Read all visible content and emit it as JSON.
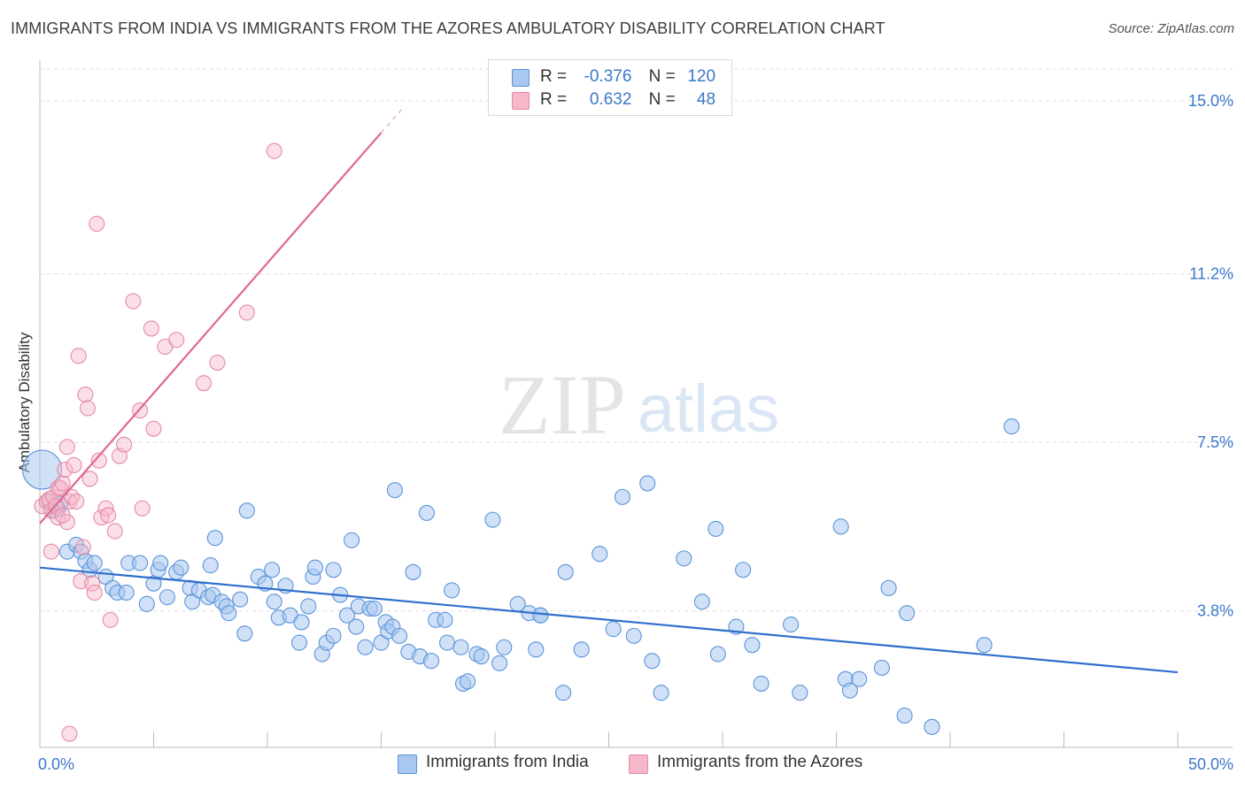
{
  "title": "IMMIGRANTS FROM INDIA VS IMMIGRANTS FROM THE AZORES AMBULATORY DISABILITY CORRELATION CHART",
  "source": "Source: ZipAtlas.com",
  "watermark": {
    "zip": "ZIP",
    "atlas": "atlas"
  },
  "legend": {
    "r_label": "R =",
    "n_label": "N =",
    "entries": [
      {
        "r": "-0.376",
        "n": "120"
      },
      {
        "r": "0.632",
        "n": "48"
      }
    ]
  },
  "colors": {
    "india_fill": "#a9c8f0",
    "india_stroke": "#5b93d8",
    "india_line": "#2f6fcc",
    "azores_fill": "#f6b8c9",
    "azores_stroke": "#e58aa6",
    "azores_line": "#e06890",
    "axis_label": "#3a78c9",
    "grid": "#dcdcdc"
  },
  "chart_data": {
    "type": "scatter",
    "title": "IMMIGRANTS FROM INDIA VS IMMIGRANTS FROM THE AZORES AMBULATORY DISABILITY CORRELATION CHART",
    "xlabel": "",
    "ylabel": "Ambulatory Disability",
    "xlim": [
      0,
      50
    ],
    "ylim": [
      0.8,
      15.7
    ],
    "x_tick_labels": [
      "0.0%",
      "50.0%"
    ],
    "y_ticks": [
      3.8,
      7.5,
      11.2,
      15.0
    ],
    "y_tick_labels": [
      "3.8%",
      "7.5%",
      "11.2%",
      "15.0%"
    ],
    "grid": "horizontal dashed",
    "legend_position": "top-center",
    "series": [
      {
        "name": "Immigrants from India",
        "r": -0.376,
        "n": 120,
        "trend": {
          "x0": 0,
          "y0": 4.75,
          "x1": 50,
          "y1": 2.45
        },
        "points": [
          [
            0.1,
            6.9
          ],
          [
            0.4,
            6.2
          ],
          [
            0.6,
            6.0
          ],
          [
            0.8,
            6.05
          ],
          [
            1.2,
            5.1
          ],
          [
            1.6,
            5.25
          ],
          [
            1.8,
            5.1
          ],
          [
            2.0,
            4.9
          ],
          [
            2.2,
            4.7
          ],
          [
            2.4,
            4.85
          ],
          [
            2.9,
            4.55
          ],
          [
            3.2,
            4.3
          ],
          [
            3.4,
            4.2
          ],
          [
            3.8,
            4.2
          ],
          [
            3.9,
            4.85
          ],
          [
            4.4,
            4.85
          ],
          [
            4.7,
            3.95
          ],
          [
            5.0,
            4.4
          ],
          [
            5.2,
            4.7
          ],
          [
            5.3,
            4.85
          ],
          [
            5.6,
            4.1
          ],
          [
            6.0,
            4.65
          ],
          [
            6.2,
            4.75
          ],
          [
            6.6,
            4.3
          ],
          [
            6.7,
            4.0
          ],
          [
            7.0,
            4.25
          ],
          [
            7.4,
            4.1
          ],
          [
            7.5,
            4.8
          ],
          [
            7.6,
            4.15
          ],
          [
            7.7,
            5.4
          ],
          [
            8.0,
            4.0
          ],
          [
            8.2,
            3.9
          ],
          [
            8.3,
            3.75
          ],
          [
            8.8,
            4.05
          ],
          [
            9.0,
            3.3
          ],
          [
            9.1,
            6.0
          ],
          [
            9.6,
            4.55
          ],
          [
            9.9,
            4.4
          ],
          [
            10.2,
            4.7
          ],
          [
            10.3,
            4.0
          ],
          [
            10.5,
            3.65
          ],
          [
            10.8,
            4.35
          ],
          [
            11.0,
            3.7
          ],
          [
            11.4,
            3.1
          ],
          [
            11.5,
            3.55
          ],
          [
            11.8,
            3.9
          ],
          [
            12.0,
            4.55
          ],
          [
            12.1,
            4.75
          ],
          [
            12.4,
            2.85
          ],
          [
            12.6,
            3.1
          ],
          [
            12.9,
            3.25
          ],
          [
            12.9,
            4.7
          ],
          [
            13.2,
            4.15
          ],
          [
            13.5,
            3.7
          ],
          [
            13.7,
            5.35
          ],
          [
            13.9,
            3.45
          ],
          [
            14.0,
            3.9
          ],
          [
            14.3,
            3.0
          ],
          [
            14.5,
            3.85
          ],
          [
            14.7,
            3.85
          ],
          [
            15.0,
            3.1
          ],
          [
            15.2,
            3.55
          ],
          [
            15.3,
            3.35
          ],
          [
            15.5,
            3.45
          ],
          [
            15.6,
            6.45
          ],
          [
            15.8,
            3.25
          ],
          [
            16.2,
            2.9
          ],
          [
            16.4,
            4.65
          ],
          [
            16.7,
            2.8
          ],
          [
            17.0,
            5.95
          ],
          [
            17.2,
            2.7
          ],
          [
            17.4,
            3.6
          ],
          [
            17.8,
            3.6
          ],
          [
            17.9,
            3.1
          ],
          [
            18.1,
            4.25
          ],
          [
            18.5,
            3.0
          ],
          [
            18.6,
            2.2
          ],
          [
            18.8,
            2.25
          ],
          [
            19.2,
            2.85
          ],
          [
            19.4,
            2.8
          ],
          [
            19.9,
            5.8
          ],
          [
            20.2,
            2.65
          ],
          [
            20.4,
            3.0
          ],
          [
            21.0,
            3.95
          ],
          [
            21.5,
            3.75
          ],
          [
            21.8,
            2.95
          ],
          [
            22.0,
            3.7
          ],
          [
            22.0,
            3.7
          ],
          [
            23.0,
            2.0
          ],
          [
            23.1,
            4.65
          ],
          [
            23.8,
            2.95
          ],
          [
            24.6,
            5.05
          ],
          [
            25.2,
            3.4
          ],
          [
            25.6,
            6.3
          ],
          [
            26.1,
            3.25
          ],
          [
            26.7,
            6.6
          ],
          [
            26.9,
            2.7
          ],
          [
            27.3,
            2.0
          ],
          [
            28.3,
            4.95
          ],
          [
            29.1,
            4.0
          ],
          [
            29.7,
            5.6
          ],
          [
            29.8,
            2.85
          ],
          [
            30.6,
            3.45
          ],
          [
            30.9,
            4.7
          ],
          [
            31.3,
            3.05
          ],
          [
            31.7,
            2.2
          ],
          [
            33.0,
            3.5
          ],
          [
            33.4,
            2.0
          ],
          [
            35.2,
            5.65
          ],
          [
            35.4,
            2.3
          ],
          [
            35.6,
            2.05
          ],
          [
            36.0,
            2.3
          ],
          [
            37.0,
            2.55
          ],
          [
            37.3,
            4.3
          ],
          [
            38.0,
            1.5
          ],
          [
            38.1,
            3.75
          ],
          [
            39.2,
            1.25
          ],
          [
            41.5,
            3.05
          ],
          [
            42.7,
            7.85
          ],
          [
            0.9,
            6.15
          ]
        ]
      },
      {
        "name": "Immigrants from the Azores",
        "r": 0.632,
        "n": 48,
        "trend": {
          "x0": 0,
          "y0": 5.72,
          "x1": 15,
          "y1": 14.3
        },
        "points": [
          [
            0.1,
            6.1
          ],
          [
            0.3,
            6.2
          ],
          [
            0.4,
            6.25
          ],
          [
            0.5,
            6.0
          ],
          [
            0.6,
            6.3
          ],
          [
            0.7,
            6.1
          ],
          [
            0.8,
            6.5
          ],
          [
            0.8,
            5.85
          ],
          [
            0.9,
            6.5
          ],
          [
            1.0,
            6.6
          ],
          [
            1.1,
            6.9
          ],
          [
            1.2,
            5.75
          ],
          [
            1.2,
            7.4
          ],
          [
            1.3,
            6.2
          ],
          [
            1.4,
            6.3
          ],
          [
            1.5,
            7.0
          ],
          [
            1.6,
            6.2
          ],
          [
            1.7,
            9.4
          ],
          [
            1.8,
            4.45
          ],
          [
            1.9,
            5.2
          ],
          [
            2.0,
            8.55
          ],
          [
            2.1,
            8.25
          ],
          [
            2.2,
            6.7
          ],
          [
            2.3,
            4.4
          ],
          [
            2.4,
            4.2
          ],
          [
            2.5,
            12.3
          ],
          [
            2.6,
            7.1
          ],
          [
            2.7,
            5.85
          ],
          [
            2.9,
            6.05
          ],
          [
            3.0,
            5.9
          ],
          [
            3.1,
            3.6
          ],
          [
            3.3,
            5.55
          ],
          [
            3.5,
            7.2
          ],
          [
            3.7,
            7.45
          ],
          [
            4.1,
            10.6
          ],
          [
            4.4,
            8.2
          ],
          [
            4.5,
            6.05
          ],
          [
            4.9,
            10.0
          ],
          [
            5.0,
            7.8
          ],
          [
            5.5,
            9.6
          ],
          [
            6.0,
            9.75
          ],
          [
            7.2,
            8.8
          ],
          [
            7.8,
            9.25
          ],
          [
            9.1,
            10.35
          ],
          [
            10.3,
            13.9
          ],
          [
            1.3,
            1.1
          ],
          [
            0.5,
            5.1
          ],
          [
            1.0,
            5.9
          ]
        ]
      }
    ]
  },
  "bottom_legend": [
    "Immigrants from India",
    "Immigrants from the Azores"
  ]
}
